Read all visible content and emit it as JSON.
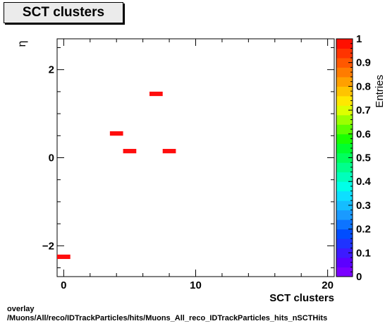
{
  "title": "SCT clusters",
  "footer": {
    "line1": "overlay",
    "line2": "/Muons/All/reco/IDTrackParticles/hits/Muons_All_reco_IDTrackParticles_hits_nSCTHits"
  },
  "chart_data": {
    "type": "heatmap",
    "title": "SCT clusters",
    "xlabel": "SCT clusters",
    "ylabel": "η",
    "zlabel": "Entries",
    "xlim": [
      -0.5,
      20.5
    ],
    "ylim": [
      -2.7,
      2.7
    ],
    "zlim": [
      0,
      1
    ],
    "x_ticks": [
      "0",
      "10",
      "20"
    ],
    "y_ticks": [
      "−2",
      "0",
      "2"
    ],
    "z_ticks": [
      "0",
      "0.1",
      "0.2",
      "0.3",
      "0.4",
      "0.5",
      "0.6",
      "0.7",
      "0.8",
      "0.9",
      "1"
    ],
    "bin_width_x": 1,
    "bin_height_y": 0.1,
    "cells": [
      {
        "x": 0,
        "y": -2.25,
        "value": 1
      },
      {
        "x": 4,
        "y": 0.55,
        "value": 1
      },
      {
        "x": 5,
        "y": 0.15,
        "value": 1
      },
      {
        "x": 7,
        "y": 1.45,
        "value": 1
      },
      {
        "x": 8,
        "y": 0.15,
        "value": 1
      }
    ],
    "cell_color": "#ff0d0d",
    "palette": [
      "#7a00ff",
      "#5c00ff",
      "#3d1aff",
      "#1f33ff",
      "#004dff",
      "#0d74ff",
      "#1a9aff",
      "#15bdff",
      "#0ddfff",
      "#00ffe8",
      "#00ffbb",
      "#00ff8c",
      "#00ff5c",
      "#00ff2e",
      "#1aff00",
      "#5cff00",
      "#9cff00",
      "#ddff00",
      "#ffe800",
      "#ffc400",
      "#ffa000",
      "#ff7c00",
      "#ff5800",
      "#ff3400",
      "#ff1000"
    ]
  }
}
